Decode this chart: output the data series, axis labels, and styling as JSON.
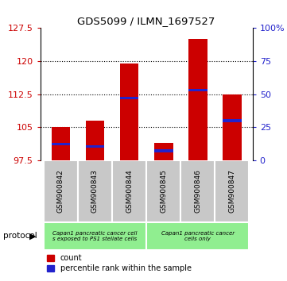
{
  "title": "GDS5099 / ILMN_1697527",
  "samples": [
    "GSM900842",
    "GSM900843",
    "GSM900844",
    "GSM900845",
    "GSM900846",
    "GSM900847"
  ],
  "count_values": [
    105.0,
    106.5,
    119.5,
    101.5,
    125.0,
    112.5
  ],
  "percentile_values": [
    12.0,
    10.5,
    47.0,
    7.0,
    53.0,
    30.0
  ],
  "y_min": 97.5,
  "y_max": 127.5,
  "y_ticks": [
    97.5,
    105,
    112.5,
    120,
    127.5
  ],
  "y2_ticks": [
    0,
    25,
    50,
    75,
    100
  ],
  "y2_tick_labels": [
    "0",
    "25",
    "50",
    "75",
    "100%"
  ],
  "dotted_lines": [
    105,
    112.5,
    120
  ],
  "bar_color": "#cc0000",
  "percentile_color": "#2222cc",
  "bar_width": 0.55,
  "legend_count_label": "count",
  "legend_percentile_label": "percentile rank within the sample",
  "protocol_text": "protocol",
  "axis_label_color_left": "#cc0000",
  "axis_label_color_right": "#2222cc",
  "background_gray": "#c8c8c8",
  "background_green": "#90ee90"
}
